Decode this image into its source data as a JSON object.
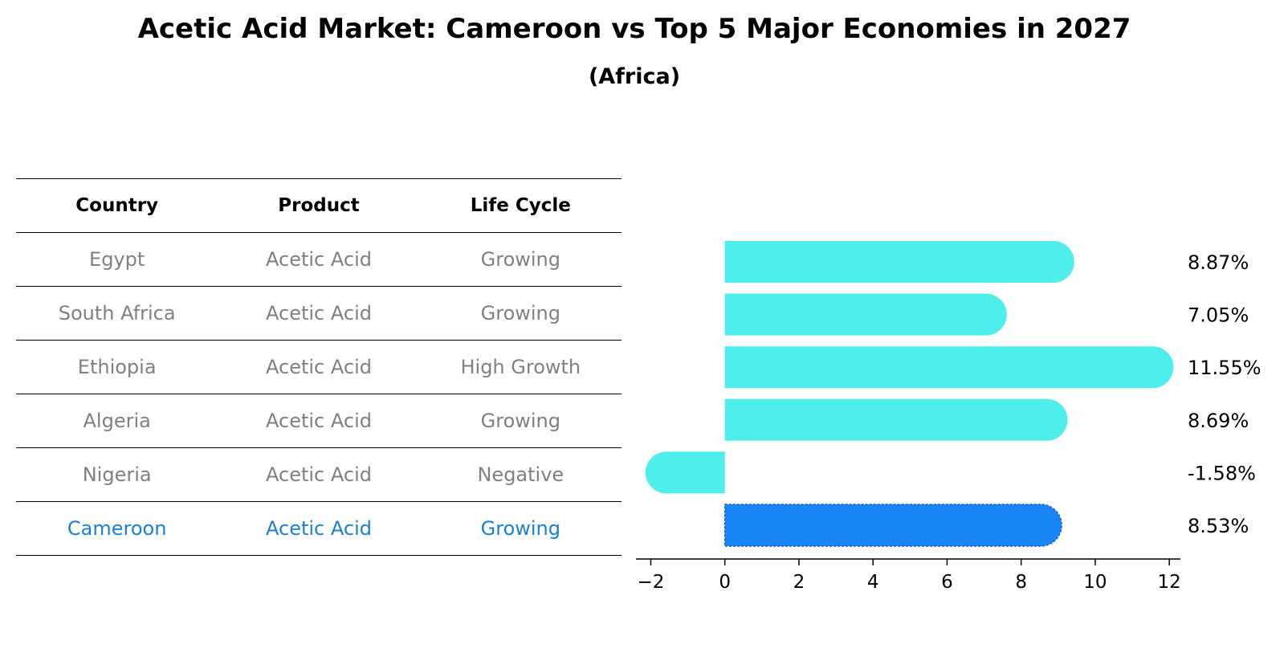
{
  "chart_data": {
    "type": "bar",
    "orientation": "horizontal",
    "title": "Acetic Acid Market: Cameroon vs Top 5 Major Economies in 2027",
    "subtitle": "(Africa)",
    "categories": [
      "Egypt",
      "South Africa",
      "Ethiopia",
      "Algeria",
      "Nigeria",
      "Cameroon"
    ],
    "values": [
      8.87,
      7.05,
      11.55,
      8.69,
      -1.58,
      8.53
    ],
    "value_labels": [
      "8.87%",
      "7.05%",
      "11.55%",
      "8.69%",
      "-1.58%",
      "8.53%"
    ],
    "xlim": [
      -2.4,
      12.3
    ],
    "xticks": [
      -2,
      0,
      2,
      4,
      6,
      8,
      10,
      12
    ],
    "xtick_labels": [
      "−2",
      "0",
      "2",
      "4",
      "6",
      "8",
      "10",
      "12"
    ],
    "highlight": "Cameroon",
    "colors": {
      "default": "#4eeeea",
      "highlight": "#1a85f5"
    }
  },
  "table": {
    "headers": [
      "Country",
      "Product",
      "Life Cycle"
    ],
    "rows": [
      [
        "Egypt",
        "Acetic Acid",
        "Growing"
      ],
      [
        "South Africa",
        "Acetic Acid",
        "Growing"
      ],
      [
        "Ethiopia",
        "Acetic Acid",
        "High Growth"
      ],
      [
        "Algeria",
        "Acetic Acid",
        "Growing"
      ],
      [
        "Nigeria",
        "Acetic Acid",
        "Negative"
      ],
      [
        "Cameroon",
        "Acetic Acid",
        "Growing"
      ]
    ],
    "highlight_row": 5,
    "text_color": "#808080",
    "highlight_color": "#1a7fd8"
  }
}
